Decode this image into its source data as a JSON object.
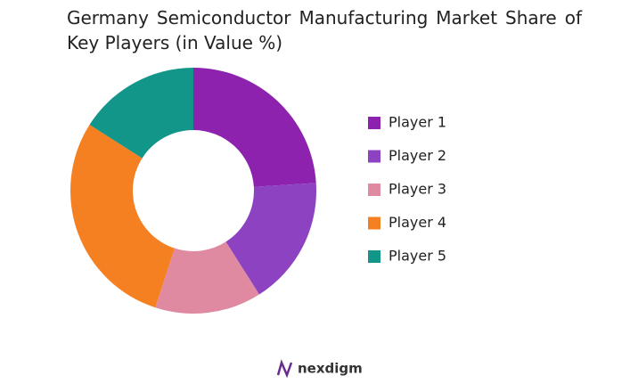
{
  "chart_data": {
    "type": "donut",
    "title": "Germany Semiconductor Manufacturing Market Share of Key Players (in Value %)",
    "categories": [
      "Player 1",
      "Player 2",
      "Player 3",
      "Player 4",
      "Player 5"
    ],
    "values": [
      24,
      17,
      14,
      29,
      16
    ],
    "colors": [
      "#8c22ad",
      "#8d42c2",
      "#e08aa1",
      "#f58022",
      "#12968a"
    ]
  },
  "brand": "nexdigm"
}
